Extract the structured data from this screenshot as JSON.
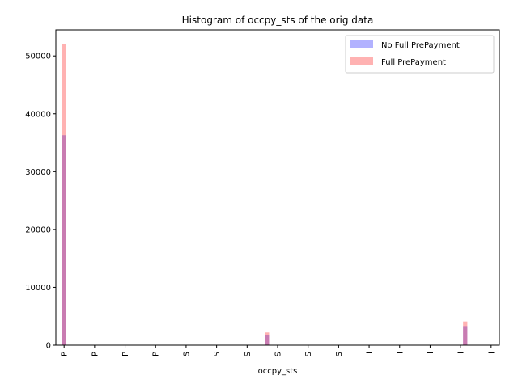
{
  "chart_data": {
    "type": "bar",
    "title": "Histogram of occpy_sts of the orig data",
    "xlabel": "occpy_sts",
    "ylabel": "",
    "x_tick_labels": [
      "P",
      "P",
      "P",
      "P",
      "S",
      "S",
      "S",
      "S",
      "S",
      "S",
      "I",
      "I",
      "I",
      "I",
      "I"
    ],
    "y_ticks": [
      0,
      10000,
      20000,
      30000,
      40000,
      50000
    ],
    "ylim": [
      0,
      54500
    ],
    "xlim": [
      -0.27,
      14.27
    ],
    "bins": [
      {
        "x": 0.0,
        "values": [
          36300,
          52000
        ]
      },
      {
        "x": 6.65,
        "values": [
          1700,
          2200
        ]
      },
      {
        "x": 13.15,
        "values": [
          3300,
          4100
        ]
      }
    ],
    "bin_width": 0.14,
    "series": [
      {
        "name": "No Full PrePayment",
        "color": "#0000ff",
        "opacity": 0.3
      },
      {
        "name": "Full PrePayment",
        "color": "#ff0000",
        "opacity": 0.3
      }
    ],
    "legend_position": "top-right",
    "grid": false
  }
}
